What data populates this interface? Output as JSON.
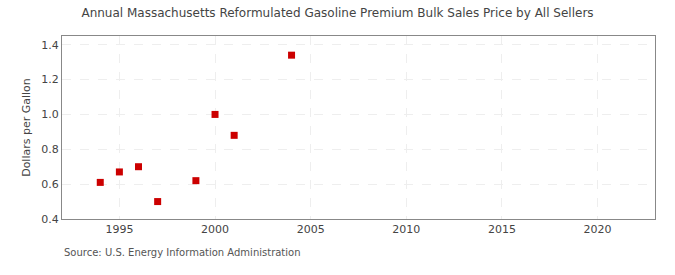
{
  "chart_data": {
    "type": "scatter",
    "title": "Annual Massachusetts Reformulated Gasoline Premium Bulk Sales Price by All Sellers",
    "ylabel": "Dollars per Gallon",
    "annotation": "Source: U.S. Energy Information Administration",
    "x": [
      1994,
      1995,
      1996,
      1997,
      1999,
      2000,
      2001,
      2004
    ],
    "values": [
      0.61,
      0.67,
      0.7,
      0.5,
      0.62,
      1.0,
      0.88,
      1.34
    ],
    "color": "#cc0000",
    "marker": "square",
    "xlim": [
      1992,
      2023
    ],
    "ylim": [
      0.4,
      1.45
    ],
    "xticks": [
      1995,
      2000,
      2005,
      2010,
      2015,
      2020
    ],
    "yticks": [
      0.4,
      0.6,
      0.8,
      {
        "value": 1.0,
        "label": "1.0"
      },
      1.2,
      1.4
    ],
    "grid": true
  }
}
